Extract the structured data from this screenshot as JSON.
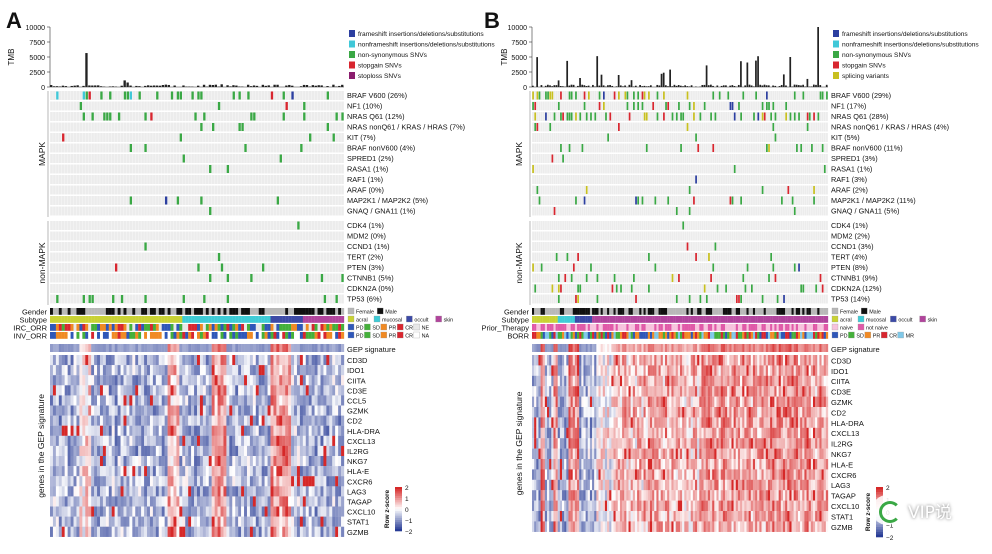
{
  "colors": {
    "frameshift": "#2c3fa0",
    "nonframeshift": "#40c8d8",
    "nonsyn": "#3aa845",
    "stopgain": "#d8262f",
    "stoploss": "#8b1d6e",
    "splicing": "#c8c020",
    "grid": "#ececec",
    "female": "#b8b8b8",
    "male": "#111111",
    "acral": "#c9d234",
    "mucosal": "#3ecbd6",
    "occult": "#3c4aa6",
    "skin": "#b1449c",
    "PD": "#2f57b8",
    "SD": "#44b03a",
    "PR": "#f08a24",
    "CR": "#d8262f",
    "NE": "#e8e8e8",
    "NA": "#ffffff",
    "MR": "#7fc8e8",
    "naive": "#f7c3dd",
    "not_naive": "#e05aa8"
  },
  "panelA": {
    "label": "A",
    "tmb_axis_label": "TMB",
    "tmb_ticks": [
      "10000",
      "7500",
      "5000",
      "2500",
      "0"
    ],
    "legend": [
      {
        "text": "frameshift insertions/deletions/substitutions",
        "color": "#2c3fa0"
      },
      {
        "text": "nonframeshift insertions/deletions/substitutions",
        "color": "#40c8d8"
      },
      {
        "text": "non-synonymous SNVs",
        "color": "#3aa845"
      },
      {
        "text": "stopgain SNVs",
        "color": "#d8262f"
      },
      {
        "text": "stoploss SNVs",
        "color": "#8b1d6e"
      }
    ],
    "genes_mapk": [
      "BRAF V600 (26%)",
      "NF1 (10%)",
      "NRAS Q61 (12%)",
      "NRAS nonQ61 / KRAS / HRAS (7%)",
      "KIT (7%)",
      "BRAF nonV600 (4%)",
      "SPRED1 (2%)",
      "RASA1 (1%)",
      "RAF1 (1%)",
      "ARAF (0%)",
      "MAP2K1 / MAP2K2 (5%)",
      "GNAQ / GNA11 (1%)"
    ],
    "genes_nonmapk": [
      "CDK4 (1%)",
      "MDM2 (0%)",
      "CCND1 (1%)",
      "TERT (2%)",
      "PTEN (3%)",
      "CTNNB1 (5%)",
      "CDKN2A (0%)",
      "TP53 (6%)"
    ],
    "group_labels": [
      "MAPK",
      "non-MAPK"
    ],
    "annotation_rows": [
      "Gender",
      "Subtype",
      "IRC_ORR",
      "INV_ORR"
    ],
    "ann_legends": [
      [
        {
          "text": "Female",
          "color": "#b8b8b8"
        },
        {
          "text": "Male",
          "color": "#111111"
        }
      ],
      [
        {
          "text": "acral",
          "color": "#c9d234"
        },
        {
          "text": "mucosal",
          "color": "#3ecbd6"
        },
        {
          "text": "occult",
          "color": "#3c4aa6"
        },
        {
          "text": "skin",
          "color": "#b1449c"
        }
      ],
      [
        {
          "text": "PD",
          "color": "#2f57b8"
        },
        {
          "text": "SD",
          "color": "#44b03a"
        },
        {
          "text": "PR",
          "color": "#f08a24"
        },
        {
          "text": "CR",
          "color": "#d8262f"
        },
        {
          "text": "NE",
          "color": "#e8e8e8"
        }
      ],
      [
        {
          "text": "PD",
          "color": "#2f57b8"
        },
        {
          "text": "SD",
          "color": "#44b03a"
        },
        {
          "text": "PR",
          "color": "#f08a24"
        },
        {
          "text": "CR",
          "color": "#d8262f"
        },
        {
          "text": "NA",
          "color": "#ffffff"
        }
      ]
    ],
    "gep_signature_label": "GEP signature",
    "gep_genes": [
      "CD3D",
      "IDO1",
      "CIITA",
      "CD3E",
      "CCL5",
      "GZMK",
      "CD2",
      "HLA-DRA",
      "CXCL13",
      "IL2RG",
      "NKG7",
      "HLA-E",
      "CXCR6",
      "LAG3",
      "TAGAP",
      "CXCL10",
      "STAT1",
      "GZMB"
    ],
    "gep_axis_label": "genes in the GEP signature",
    "zscore_title": "Row z-score",
    "zscore_ticks": [
      "2",
      "1",
      "0",
      "−1",
      "−2"
    ]
  },
  "panelB": {
    "label": "B",
    "tmb_axis_label": "TMB",
    "tmb_ticks": [
      "10000",
      "7500",
      "5000",
      "2500",
      "0"
    ],
    "legend": [
      {
        "text": "frameshift insertions/deletions/substitutions",
        "color": "#2c3fa0"
      },
      {
        "text": "nonframeshift insertions/deletions/substitutions",
        "color": "#40c8d8"
      },
      {
        "text": "non-synonymous SNVs",
        "color": "#3aa845"
      },
      {
        "text": "stopgain SNVs",
        "color": "#d8262f"
      },
      {
        "text": "splicing variants",
        "color": "#c8c020"
      }
    ],
    "genes_mapk": [
      "BRAF V600 (29%)",
      "NF1 (17%)",
      "NRAS Q61 (28%)",
      "NRAS nonQ61 / KRAS / HRAS (4%)",
      "KIT (5%)",
      "BRAF nonV600 (11%)",
      "SPRED1 (3%)",
      "RASA1 (1%)",
      "RAF1 (3%)",
      "ARAF (2%)",
      "MAP2K1 / MAP2K2 (11%)",
      "GNAQ / GNA11 (5%)"
    ],
    "genes_nonmapk": [
      "CDK4 (1%)",
      "MDM2 (2%)",
      "CCND1 (3%)",
      "TERT (4%)",
      "PTEN (8%)",
      "CTNNB1 (9%)",
      "CDKN2A (12%)",
      "TP53 (14%)"
    ],
    "group_labels": [
      "MAPK",
      "non-MAPK"
    ],
    "annotation_rows": [
      "Gender",
      "Subtype",
      "Prior_Therapy",
      "BORR"
    ],
    "ann_legends": [
      [
        {
          "text": "Female",
          "color": "#b8b8b8"
        },
        {
          "text": "Male",
          "color": "#111111"
        }
      ],
      [
        {
          "text": "acral",
          "color": "#c9d234"
        },
        {
          "text": "mucosal",
          "color": "#3ecbd6"
        },
        {
          "text": "occult",
          "color": "#3c4aa6"
        },
        {
          "text": "skin",
          "color": "#b1449c"
        }
      ],
      [
        {
          "text": "naive",
          "color": "#f7c3dd"
        },
        {
          "text": "not naive",
          "color": "#e05aa8"
        }
      ],
      [
        {
          "text": "PD",
          "color": "#2f57b8"
        },
        {
          "text": "SD",
          "color": "#44b03a"
        },
        {
          "text": "PR",
          "color": "#f08a24"
        },
        {
          "text": "CR",
          "color": "#d8262f"
        },
        {
          "text": "MR",
          "color": "#7fc8e8"
        }
      ]
    ],
    "gep_signature_label": "GEP signature",
    "gep_genes": [
      "CD3D",
      "IDO1",
      "CIITA",
      "CD3E",
      "GZMK",
      "CD2",
      "HLA-DRA",
      "CXCL13",
      "IL2RG",
      "NKG7",
      "HLA-E",
      "CXCR6",
      "LAG3",
      "TAGAP",
      "CXCL10",
      "STAT1",
      "GZMB"
    ],
    "gep_axis_label": "genes in the GEP signature",
    "zscore_title": "Row z-score",
    "zscore_ticks": [
      "2",
      "1",
      "0",
      "−1",
      "−2"
    ]
  },
  "watermark": "VIP说"
}
